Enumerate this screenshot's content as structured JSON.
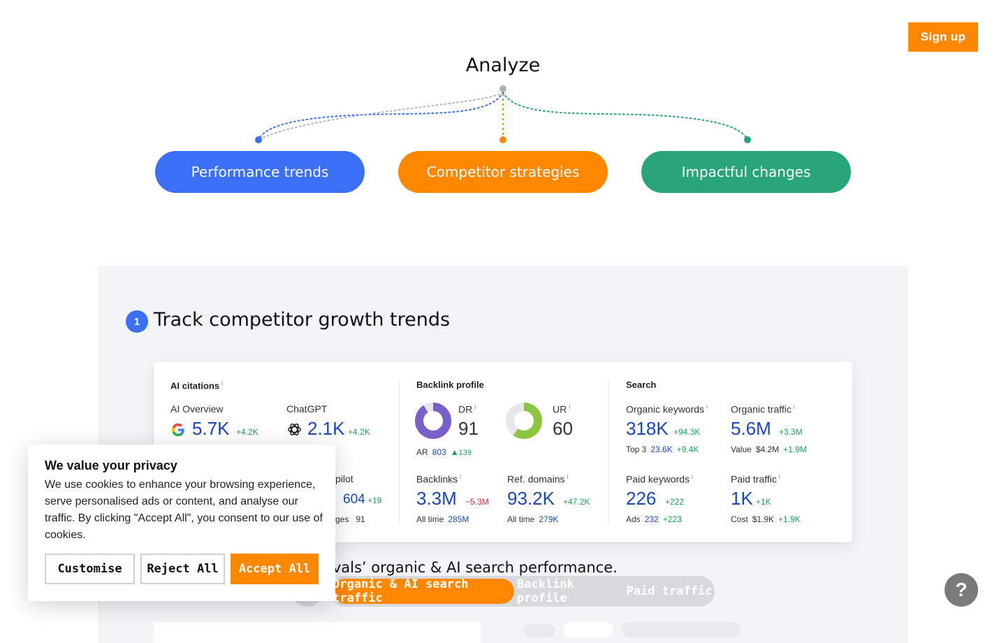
{
  "header": {
    "signup_label": "Sign up"
  },
  "analyze": {
    "title": "Analyze",
    "pills": [
      "Performance trends",
      "Competitor strategies",
      "Impactful changes"
    ],
    "colors": {
      "blue": "#3b6ff5",
      "orange": "#ff8800",
      "green": "#27a577"
    }
  },
  "section": {
    "step_number": "1",
    "title": "Track competitor growth trends",
    "subtitle": "ivals’ organic & AI search performance.",
    "tabs": [
      "Organic & AI search traffic",
      "Backlink profile",
      "Paid traffic"
    ]
  },
  "card": {
    "ai": {
      "heading": "AI citations",
      "info": "i",
      "overview_label": "AI Overview",
      "overview_value": "5.7K",
      "overview_delta": "+4.2K",
      "chatgpt_label": "ChatGPT",
      "chatgpt_value": "2.1K",
      "chatgpt_delta": "+4.2K",
      "copilot_label": "pilot",
      "copilot_value": "604",
      "copilot_delta": "+19",
      "pages_label": "ges",
      "pages_value": "91"
    },
    "backlink": {
      "heading": "Backlink profile",
      "dr_label": "DR",
      "dr_value": "91",
      "ur_label": "UR",
      "ur_value": "60",
      "ar_label": "AR",
      "ar_value": "803",
      "ar_delta": "139",
      "backlinks_label": "Backlinks",
      "backlinks_value": "3.3M",
      "backlinks_delta": "−5.3M",
      "backlinks_alltime_label": "All time",
      "backlinks_alltime_value": "285M",
      "refdomains_label": "Ref. domains",
      "refdomains_value": "93.2K",
      "refdomains_delta": "+47.2K",
      "refdomains_alltime_label": "All time",
      "refdomains_alltime_value": "279K",
      "dr_ratio": 0.91,
      "ur_ratio": 0.6
    },
    "search": {
      "heading": "Search",
      "ok_label": "Organic keywords",
      "ok_value": "318K",
      "ok_delta": "+94.3K",
      "top3_label": "Top 3",
      "top3_value": "23.6K",
      "top3_delta": "+9.4K",
      "ot_label": "Organic traffic",
      "ot_value": "5.6M",
      "ot_delta": "+3.3M",
      "value_label": "Value",
      "value_value": "$4.2M",
      "value_delta": "+1.9M",
      "pk_label": "Paid keywords",
      "pk_value": "226",
      "pk_delta": "+222",
      "ads_label": "Ads",
      "ads_value": "232",
      "ads_delta": "+223",
      "pt_label": "Paid traffic",
      "pt_value": "1K",
      "pt_delta": "+1K",
      "cost_label": "Cost",
      "cost_value": "$1.9K",
      "cost_delta": "+1.9K"
    }
  },
  "cookie": {
    "title": "We value your privacy",
    "body": "We use cookies to enhance your browsing experience, serve personalised ads or content, and analyse our traffic. By clicking \"Accept All\", you consent to our use of cookies.",
    "customise": "Customise",
    "reject": "Reject All",
    "accept": "Accept All"
  },
  "help": {
    "label": "?"
  }
}
